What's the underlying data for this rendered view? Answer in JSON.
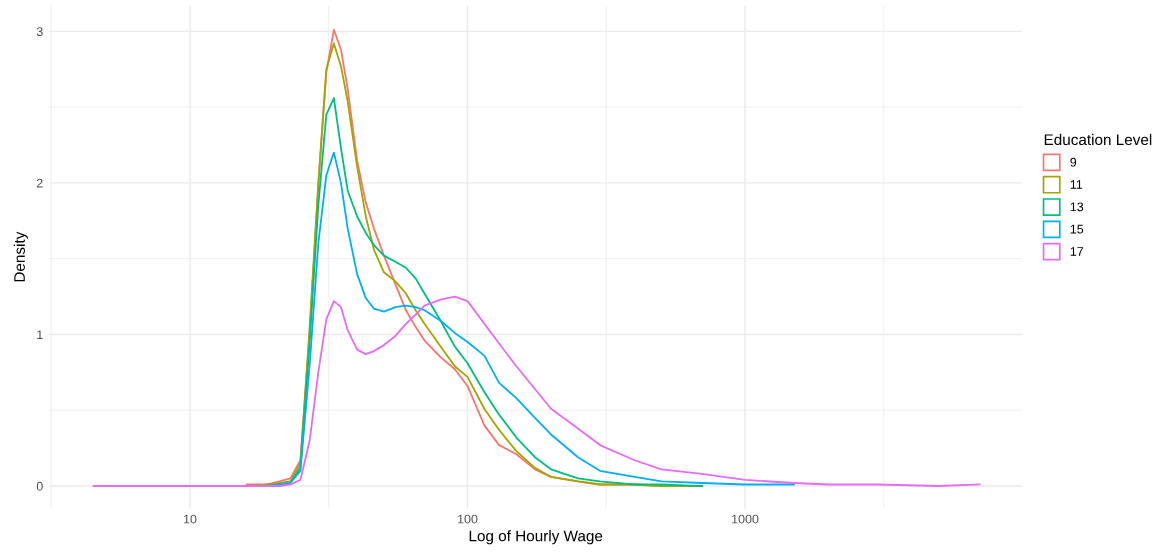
{
  "chart_data": {
    "type": "line",
    "xlabel": "Log of Hourly Wage",
    "ylabel": "Density",
    "legend_title": "Education Level",
    "log": "x",
    "x": [
      4.5,
      6,
      8,
      10,
      13,
      16,
      19,
      21,
      23,
      25,
      27,
      29,
      31,
      33,
      35,
      37,
      40,
      43,
      46,
      50,
      55,
      60,
      65,
      70,
      80,
      90,
      100,
      115,
      130,
      150,
      175,
      200,
      250,
      300,
      400,
      500,
      700,
      1000,
      1500,
      2000,
      3000,
      5000,
      7000
    ],
    "series": [
      {
        "name": "9",
        "color": "#F8766D",
        "x": [
          16,
          19,
          21,
          23,
          25,
          27,
          29,
          31,
          33,
          35,
          37,
          40,
          43,
          46,
          50,
          55,
          60,
          65,
          70,
          80,
          90,
          100,
          115,
          130,
          150,
          175,
          200,
          250,
          300,
          400,
          500,
          700
        ],
        "values": [
          0.01,
          0.01,
          0.03,
          0.05,
          0.17,
          1.01,
          1.98,
          2.73,
          3.01,
          2.88,
          2.62,
          2.15,
          1.87,
          1.7,
          1.52,
          1.33,
          1.16,
          1.05,
          0.96,
          0.85,
          0.77,
          0.66,
          0.4,
          0.27,
          0.21,
          0.11,
          0.06,
          0.03,
          0.01,
          0.01,
          0,
          0
        ]
      },
      {
        "name": "11",
        "color": "#A3A500",
        "x": [
          16,
          19,
          21,
          23,
          25,
          27,
          29,
          31,
          33,
          35,
          37,
          40,
          43,
          46,
          50,
          55,
          60,
          65,
          70,
          80,
          90,
          100,
          115,
          130,
          150,
          175,
          200,
          250,
          300,
          400,
          500,
          700
        ],
        "values": [
          0,
          0.01,
          0.02,
          0.03,
          0.15,
          1.05,
          2.0,
          2.75,
          2.92,
          2.77,
          2.54,
          2.11,
          1.78,
          1.56,
          1.41,
          1.35,
          1.27,
          1.16,
          1.07,
          0.92,
          0.79,
          0.72,
          0.51,
          0.37,
          0.23,
          0.12,
          0.06,
          0.03,
          0.01,
          0.01,
          0,
          0
        ]
      },
      {
        "name": "13",
        "color": "#00BF7D",
        "x": [
          16,
          19,
          21,
          23,
          25,
          27,
          29,
          31,
          33,
          35,
          37,
          40,
          43,
          46,
          50,
          55,
          60,
          65,
          70,
          80,
          90,
          100,
          115,
          130,
          150,
          175,
          200,
          250,
          300,
          400,
          500,
          700
        ],
        "values": [
          0,
          0,
          0.01,
          0.02,
          0.12,
          0.95,
          1.85,
          2.45,
          2.56,
          2.23,
          1.95,
          1.78,
          1.67,
          1.59,
          1.52,
          1.48,
          1.44,
          1.37,
          1.27,
          1.09,
          0.92,
          0.81,
          0.62,
          0.47,
          0.32,
          0.19,
          0.11,
          0.05,
          0.03,
          0.01,
          0.01,
          0
        ]
      },
      {
        "name": "15",
        "color": "#00B0F6",
        "x": [
          16,
          19,
          21,
          23,
          25,
          27,
          29,
          31,
          33,
          35,
          37,
          40,
          43,
          46,
          50,
          55,
          60,
          65,
          70,
          80,
          90,
          100,
          115,
          130,
          150,
          175,
          200,
          250,
          300,
          400,
          500,
          700,
          1000,
          1500
        ],
        "values": [
          0,
          0,
          0.01,
          0.02,
          0.1,
          0.8,
          1.6,
          2.05,
          2.2,
          2.0,
          1.7,
          1.4,
          1.24,
          1.17,
          1.15,
          1.18,
          1.19,
          1.18,
          1.16,
          1.09,
          1.01,
          0.95,
          0.86,
          0.68,
          0.58,
          0.45,
          0.34,
          0.19,
          0.1,
          0.06,
          0.03,
          0.02,
          0.01,
          0.01
        ]
      },
      {
        "name": "17",
        "color": "#E76BF3",
        "values": [
          0,
          0,
          0,
          0,
          0,
          0,
          0,
          0,
          0.01,
          0.04,
          0.3,
          0.75,
          1.1,
          1.22,
          1.18,
          1.03,
          0.9,
          0.87,
          0.89,
          0.93,
          0.99,
          1.07,
          1.13,
          1.19,
          1.23,
          1.25,
          1.22,
          1.07,
          0.94,
          0.79,
          0.64,
          0.51,
          0.38,
          0.27,
          0.17,
          0.11,
          0.08,
          0.04,
          0.02,
          0.01,
          0.01,
          0,
          0.01
        ]
      }
    ],
    "xlim": [
      3.1,
      10000
    ],
    "xticks": [
      10,
      100,
      1000
    ],
    "ylim": [
      -0.15,
      3.17
    ],
    "yticks": [
      0,
      1,
      2,
      3
    ],
    "grid": true,
    "legend": "right",
    "marker": "none",
    "line_style": "solid"
  }
}
